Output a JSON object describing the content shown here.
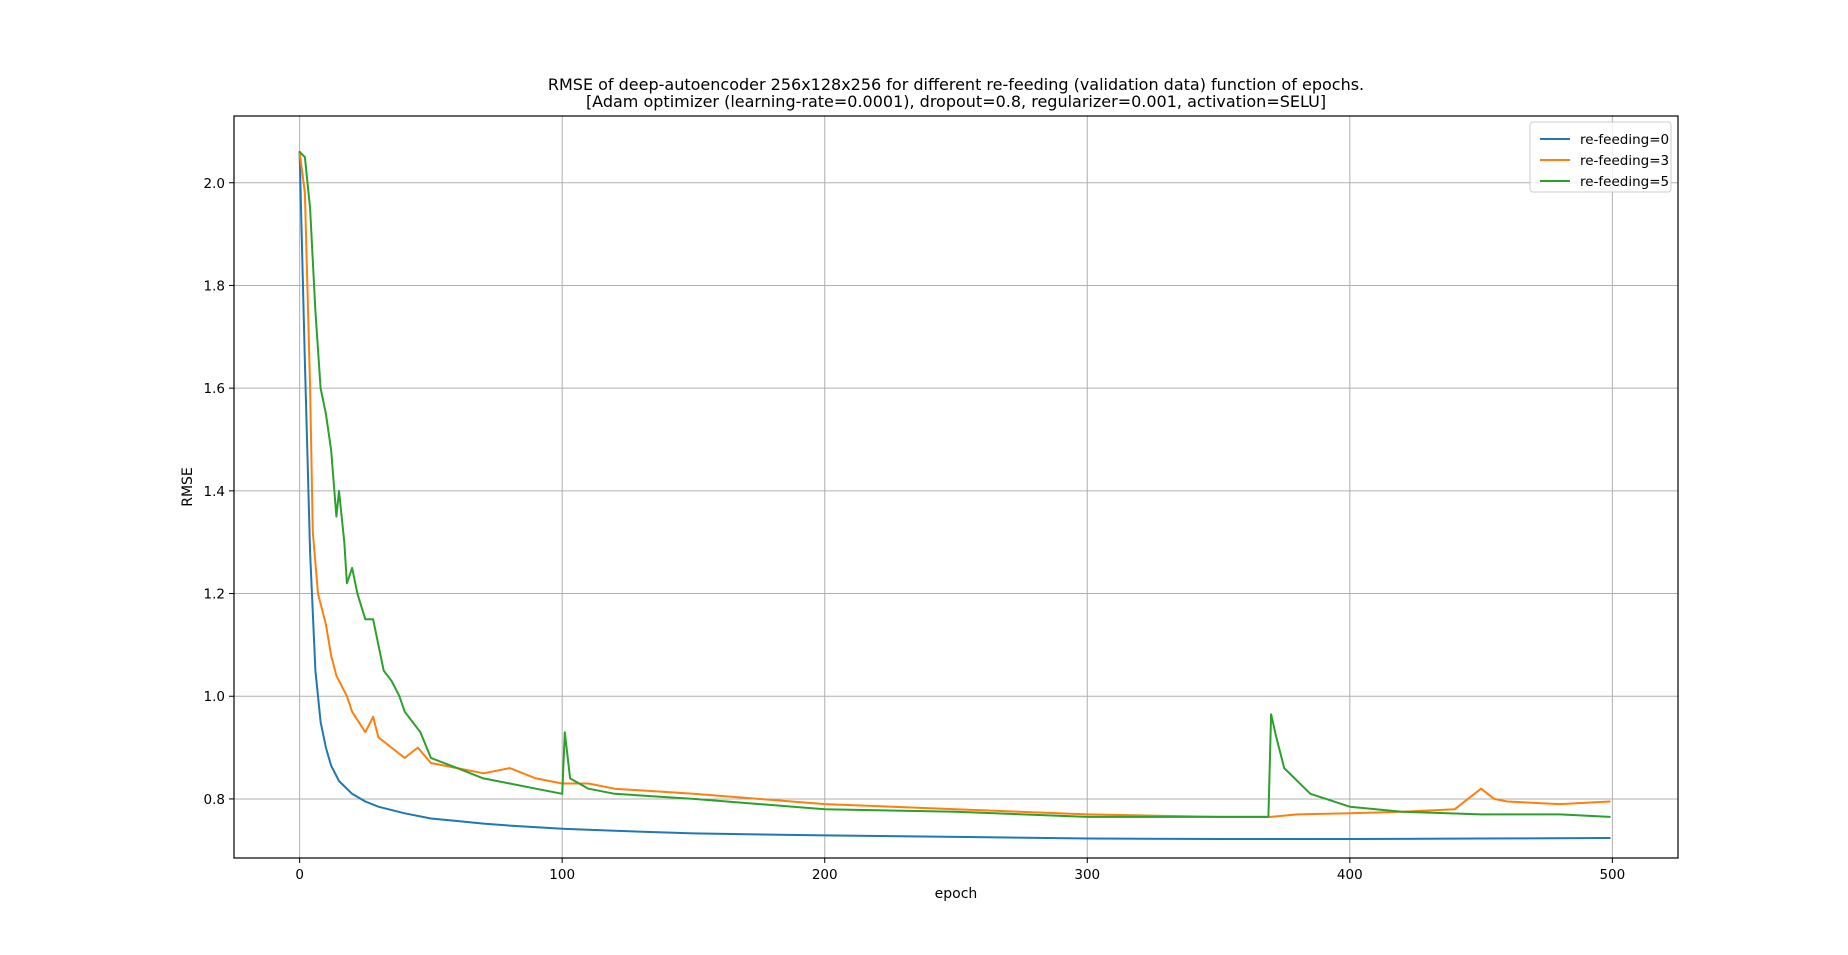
{
  "chart_data": {
    "type": "line",
    "title": "RMSE of deep-autoencoder 256x128x256 for different re-feeding (validation data) function of epochs.",
    "subtitle": "[Adam optimizer (learning-rate=0.0001), dropout=0.8, regularizer=0.001, activation=SELU]",
    "xlabel": "epoch",
    "ylabel": "RMSE",
    "xlim": [
      -25,
      525
    ],
    "ylim": [
      0.685,
      2.13
    ],
    "xticks": [
      0,
      100,
      200,
      300,
      400,
      500
    ],
    "yticks": [
      0.8,
      1.0,
      1.2,
      1.4,
      1.6,
      1.8,
      2.0
    ],
    "xtick_labels": [
      "0",
      "100",
      "200",
      "300",
      "400",
      "500"
    ],
    "ytick_labels": [
      "0.8",
      "1.0",
      "1.2",
      "1.4",
      "1.6",
      "1.8",
      "2.0"
    ],
    "grid": true,
    "legend_position": "top-right",
    "series": [
      {
        "name": "re-feeding=0",
        "color": "#1f77b4",
        "x": [
          0,
          2,
          4,
          6,
          8,
          10,
          12,
          15,
          20,
          25,
          30,
          40,
          50,
          60,
          70,
          80,
          100,
          120,
          150,
          200,
          250,
          300,
          350,
          400,
          450,
          499
        ],
        "y": [
          2.06,
          1.65,
          1.28,
          1.05,
          0.95,
          0.9,
          0.865,
          0.835,
          0.81,
          0.795,
          0.785,
          0.772,
          0.762,
          0.757,
          0.752,
          0.748,
          0.742,
          0.738,
          0.733,
          0.729,
          0.726,
          0.723,
          0.722,
          0.722,
          0.723,
          0.724
        ]
      },
      {
        "name": "re-feeding=3",
        "color": "#ff7f0e",
        "x": [
          0,
          2,
          4,
          5,
          7,
          10,
          12,
          14,
          18,
          20,
          25,
          28,
          30,
          35,
          40,
          45,
          50,
          60,
          70,
          80,
          90,
          100,
          110,
          120,
          150,
          200,
          250,
          300,
          350,
          370,
          380,
          400,
          420,
          440,
          450,
          455,
          460,
          480,
          499
        ],
        "y": [
          2.06,
          1.98,
          1.6,
          1.32,
          1.2,
          1.14,
          1.08,
          1.04,
          1.0,
          0.97,
          0.93,
          0.96,
          0.92,
          0.9,
          0.88,
          0.9,
          0.87,
          0.86,
          0.85,
          0.86,
          0.84,
          0.83,
          0.83,
          0.82,
          0.81,
          0.79,
          0.78,
          0.77,
          0.765,
          0.765,
          0.77,
          0.772,
          0.775,
          0.78,
          0.82,
          0.8,
          0.795,
          0.79,
          0.795
        ]
      },
      {
        "name": "re-feeding=5",
        "color": "#2ca02c",
        "x": [
          0,
          2,
          4,
          6,
          8,
          10,
          12,
          14,
          15,
          17,
          18,
          20,
          22,
          25,
          28,
          30,
          32,
          35,
          38,
          40,
          43,
          46,
          50,
          55,
          60,
          70,
          80,
          90,
          100,
          101,
          103,
          110,
          120,
          150,
          200,
          250,
          300,
          350,
          365,
          369,
          370,
          372,
          375,
          385,
          400,
          420,
          450,
          480,
          499
        ],
        "y": [
          2.06,
          2.05,
          1.95,
          1.75,
          1.6,
          1.55,
          1.48,
          1.35,
          1.4,
          1.3,
          1.22,
          1.25,
          1.2,
          1.15,
          1.15,
          1.1,
          1.05,
          1.03,
          1.0,
          0.97,
          0.95,
          0.93,
          0.88,
          0.87,
          0.86,
          0.84,
          0.83,
          0.82,
          0.81,
          0.93,
          0.84,
          0.82,
          0.81,
          0.8,
          0.78,
          0.775,
          0.765,
          0.765,
          0.765,
          0.765,
          0.965,
          0.92,
          0.86,
          0.81,
          0.785,
          0.775,
          0.77,
          0.77,
          0.765
        ]
      }
    ]
  }
}
